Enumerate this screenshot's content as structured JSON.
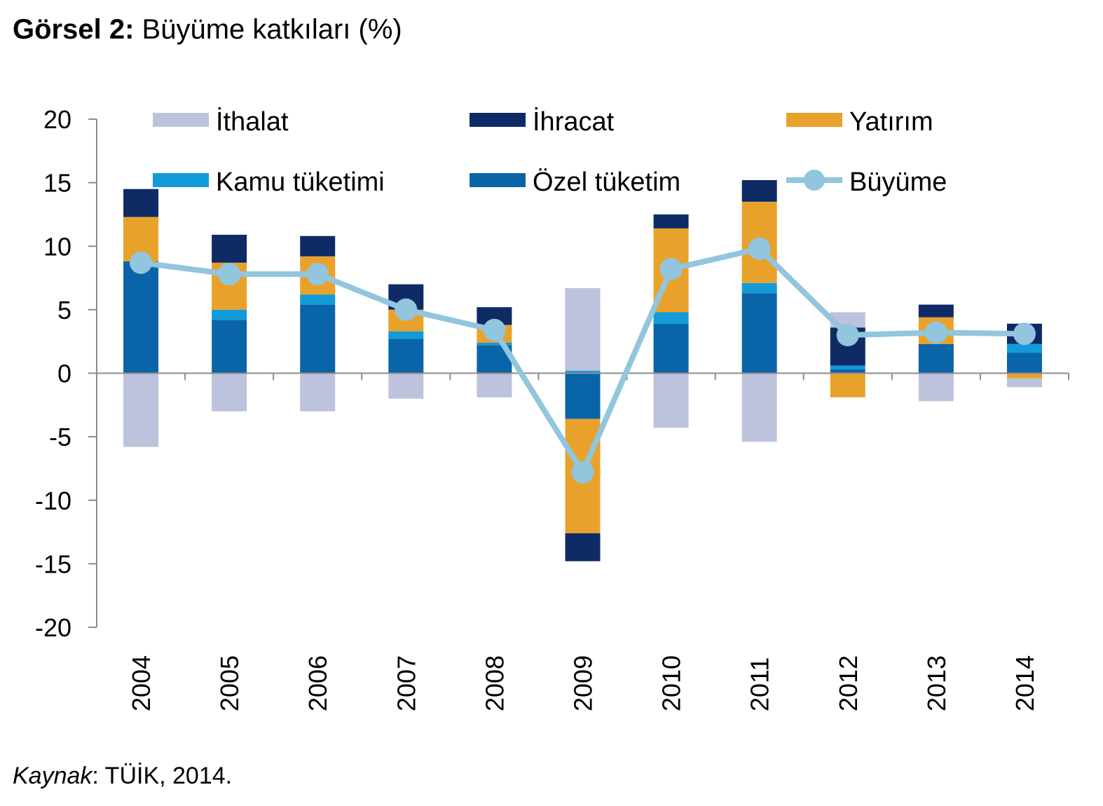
{
  "title": {
    "bold": "Görsel 2:",
    "text": "Büyüme katkıları (%)"
  },
  "source": {
    "italic": "Kaynak",
    "text": ": TÜİK, 2014."
  },
  "chart_data": {
    "type": "bar",
    "stacked": true,
    "categories": [
      "2004",
      "2005",
      "2006",
      "2007",
      "2008",
      "2009",
      "2010",
      "2011",
      "2012",
      "2013",
      "2014"
    ],
    "ylim": [
      -20,
      20
    ],
    "yticks": [
      20,
      15,
      10,
      5,
      0,
      -5,
      -10,
      -15,
      -20
    ],
    "series": [
      {
        "name": "Özel tüketim",
        "color": "#0A64A8",
        "values": [
          8.8,
          4.2,
          5.4,
          2.7,
          2.2,
          -3.6,
          3.9,
          6.3,
          0.3,
          2.3,
          1.6
        ]
      },
      {
        "name": "Kamu tüketimi",
        "color": "#129BD8",
        "values": [
          0.0,
          0.8,
          0.8,
          0.6,
          0.2,
          0.2,
          0.9,
          0.8,
          0.3,
          0.0,
          0.7
        ]
      },
      {
        "name": "Yatırım",
        "color": "#E8A22B",
        "values": [
          3.5,
          3.7,
          3.0,
          1.7,
          1.4,
          -9.0,
          6.6,
          6.4,
          -1.9,
          2.1,
          -0.4
        ]
      },
      {
        "name": "İhracat",
        "color": "#0E2B66",
        "values": [
          2.2,
          2.2,
          1.6,
          2.0,
          1.4,
          -2.2,
          1.1,
          1.7,
          3.0,
          1.0,
          1.6
        ]
      },
      {
        "name": "İthalat",
        "color": "#BDC3DC",
        "values": [
          -5.8,
          -3.0,
          -3.0,
          -2.0,
          -1.9,
          6.5,
          -4.3,
          -5.4,
          1.2,
          -2.2,
          -0.7
        ]
      }
    ],
    "line": {
      "name": "Büyüme",
      "color": "#92C5DE",
      "values": [
        8.7,
        7.8,
        7.8,
        5.0,
        3.4,
        -7.8,
        8.2,
        9.8,
        3.0,
        3.2,
        3.1
      ]
    },
    "legend": [
      {
        "name": "İthalat",
        "kind": "bar",
        "color": "#BDC3DC"
      },
      {
        "name": "İhracat",
        "kind": "bar",
        "color": "#0E2B66"
      },
      {
        "name": "Yatırım",
        "kind": "bar",
        "color": "#E8A22B"
      },
      {
        "name": "Kamu tüketimi",
        "kind": "bar",
        "color": "#129BD8"
      },
      {
        "name": "Özel tüketim",
        "kind": "bar",
        "color": "#0A64A8"
      },
      {
        "name": "Büyüme",
        "kind": "line",
        "color": "#92C5DE"
      }
    ],
    "legend_position": "top, inside plot, 3 columns",
    "grid": false
  }
}
